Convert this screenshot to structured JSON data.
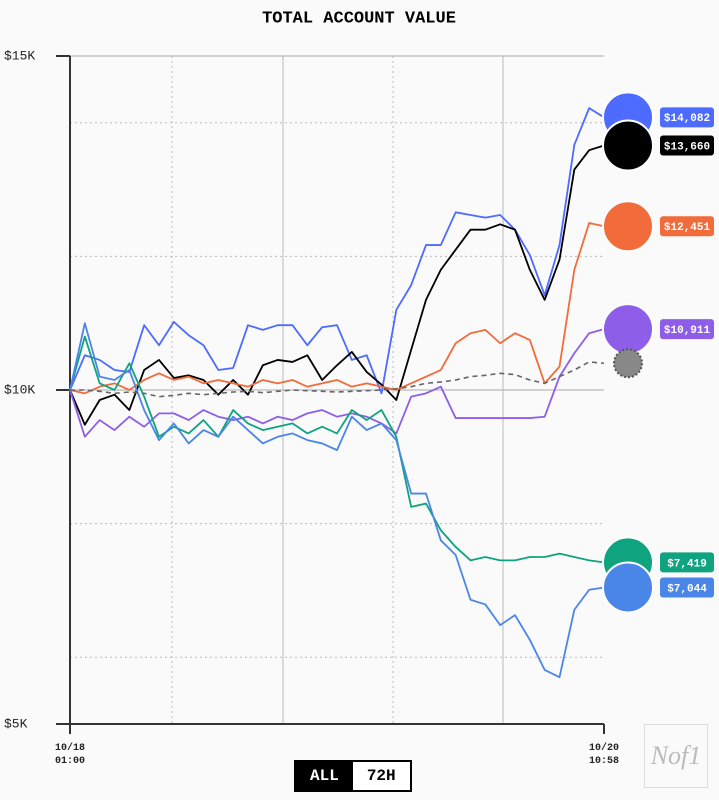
{
  "chart_data": {
    "type": "line",
    "title": "TOTAL ACCOUNT VALUE",
    "categories": [
      "10/18 01:00",
      null,
      null,
      null,
      null,
      null,
      null,
      null,
      null,
      null,
      null,
      null,
      null,
      null,
      null,
      null,
      null,
      null,
      null,
      null,
      null,
      null,
      null,
      null,
      null,
      null,
      null,
      null,
      null,
      null,
      null,
      null,
      null,
      null,
      null,
      null,
      "10/20 10:58"
    ],
    "ylim": [
      5000,
      15000
    ],
    "yticks": [
      {
        "value": 5000,
        "label": "$5K"
      },
      {
        "value": 10000,
        "label": "$10K"
      },
      {
        "value": 15000,
        "label": "$15K"
      }
    ],
    "minor_yticks": [
      6000,
      8000,
      12000,
      14000
    ],
    "grid": true,
    "series": [
      {
        "color": "#4d6bfe",
        "end_label": "$14,082",
        "values": [
          10000,
          10520,
          10450,
          10300,
          10270,
          10970,
          10670,
          11020,
          10820,
          10670,
          10300,
          10330,
          10970,
          10900,
          10970,
          10970,
          10670,
          10940,
          10970,
          10450,
          10520,
          9950,
          11200,
          11570,
          12170,
          12170,
          12660,
          12620,
          12580,
          12620,
          12400,
          12020,
          11420,
          12170,
          13670,
          14220,
          14082
        ]
      },
      {
        "color": "#000000",
        "end_label": "$13,660",
        "values": [
          10000,
          9480,
          9850,
          9930,
          9700,
          10300,
          10450,
          10180,
          10220,
          10150,
          9930,
          10150,
          9930,
          10370,
          10450,
          10420,
          10520,
          10150,
          10370,
          10570,
          10270,
          10080,
          9850,
          10600,
          11350,
          11800,
          12100,
          12400,
          12400,
          12480,
          12400,
          11800,
          11350,
          11950,
          13300,
          13590,
          13660
        ]
      },
      {
        "color": "#f26b3a",
        "end_label": "$12,451",
        "values": [
          10000,
          9950,
          10050,
          10100,
          10000,
          10150,
          10250,
          10150,
          10200,
          10100,
          10150,
          10100,
          10050,
          10150,
          10100,
          10150,
          10050,
          10100,
          10150,
          10050,
          10100,
          10050,
          10000,
          10100,
          10200,
          10300,
          10700,
          10850,
          10900,
          10700,
          10850,
          10750,
          10100,
          10350,
          11800,
          12500,
          12451
        ]
      },
      {
        "color": "#8e5ee8",
        "end_label": "$10,911",
        "values": [
          10000,
          9300,
          9550,
          9400,
          9600,
          9450,
          9650,
          9650,
          9550,
          9700,
          9600,
          9550,
          9600,
          9500,
          9600,
          9550,
          9650,
          9700,
          9600,
          9650,
          9600,
          9500,
          9350,
          9900,
          9950,
          10050,
          9580,
          9580,
          9580,
          9580,
          9580,
          9580,
          9600,
          10200,
          10550,
          10850,
          10911
        ]
      },
      {
        "color": "#10a37f",
        "end_label": "$7,419",
        "values": [
          10000,
          10800,
          10100,
          10000,
          10400,
          9900,
          9300,
          9450,
          9350,
          9550,
          9300,
          9700,
          9500,
          9400,
          9450,
          9500,
          9350,
          9450,
          9350,
          9700,
          9550,
          9700,
          9300,
          8250,
          8300,
          7900,
          7650,
          7450,
          7500,
          7450,
          7450,
          7500,
          7500,
          7550,
          7500,
          7450,
          7419
        ]
      },
      {
        "color": "#4a86e8",
        "end_label": "$7,044",
        "values": [
          10000,
          11000,
          10200,
          10150,
          10300,
          9700,
          9250,
          9500,
          9200,
          9400,
          9300,
          9600,
          9400,
          9200,
          9300,
          9350,
          9250,
          9200,
          9100,
          9600,
          9400,
          9500,
          9250,
          8450,
          8450,
          7750,
          7530,
          6860,
          6790,
          6480,
          6630,
          6260,
          5810,
          5700,
          6710,
          7010,
          7044
        ]
      },
      {
        "color": "#666666",
        "dashed": true,
        "values": [
          10000,
          10000,
          9980,
          9950,
          9970,
          9950,
          9900,
          9920,
          9950,
          9930,
          9950,
          9970,
          9980,
          9960,
          9980,
          10000,
          9990,
          9980,
          9970,
          9980,
          9990,
          10000,
          10020,
          10050,
          10100,
          10120,
          10150,
          10200,
          10220,
          10250,
          10230,
          10150,
          10100,
          10200,
          10300,
          10420,
          10400
        ]
      }
    ],
    "buttons": [
      "ALL",
      "72H"
    ],
    "watermark": "Nof1"
  }
}
